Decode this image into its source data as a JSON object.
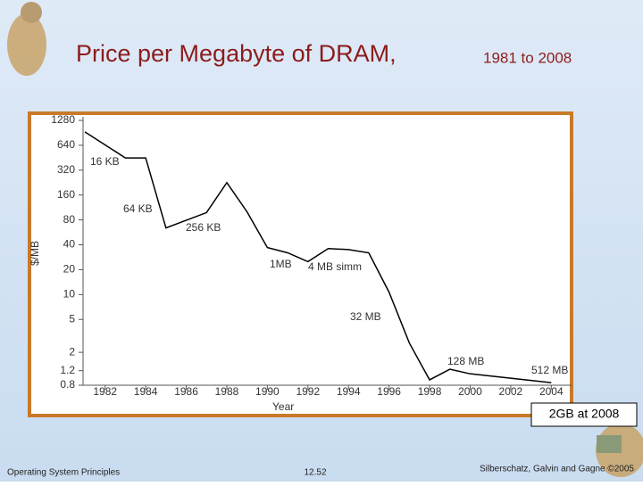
{
  "chart_data": {
    "type": "line",
    "title": "Price per Megabyte of DRAM,",
    "subtitle": "1981 to 2008",
    "x_label": "Year",
    "y_label": "$/MB",
    "x": [
      1981,
      1983,
      1984,
      1985,
      1987,
      1988,
      1989,
      1990,
      1991,
      1992,
      1993,
      1994,
      1995,
      1996,
      1997,
      1998,
      1999,
      2000,
      2004
    ],
    "values": [
      930,
      450,
      450,
      64,
      98,
      226,
      100,
      37,
      32,
      25,
      36,
      35,
      32,
      10.7,
      2.6,
      0.93,
      1.25,
      1.1,
      0.86
    ],
    "color": "#000000",
    "xlim": [
      1981,
      2005
    ],
    "xticks": [
      1982,
      1984,
      1986,
      1988,
      1990,
      1992,
      1994,
      1996,
      1998,
      2000,
      2002,
      2004
    ],
    "ylim": [
      0.8,
      1280
    ],
    "yticks": [
      0.8,
      1.2,
      2,
      5,
      10,
      20,
      40,
      80,
      160,
      320,
      640,
      1280
    ],
    "log_y": true,
    "grid": false,
    "annotations": [
      "16 KB",
      "64 KB",
      "256 KB",
      "1MB",
      "4 MB simm",
      "32 MB",
      "128 MB",
      "512 MB"
    ],
    "note": "2GB at 2008"
  },
  "footer": {
    "left": "Operating System Principles",
    "center": "12.52",
    "right": "Silberschatz, Galvin and Gagne ©2005"
  }
}
